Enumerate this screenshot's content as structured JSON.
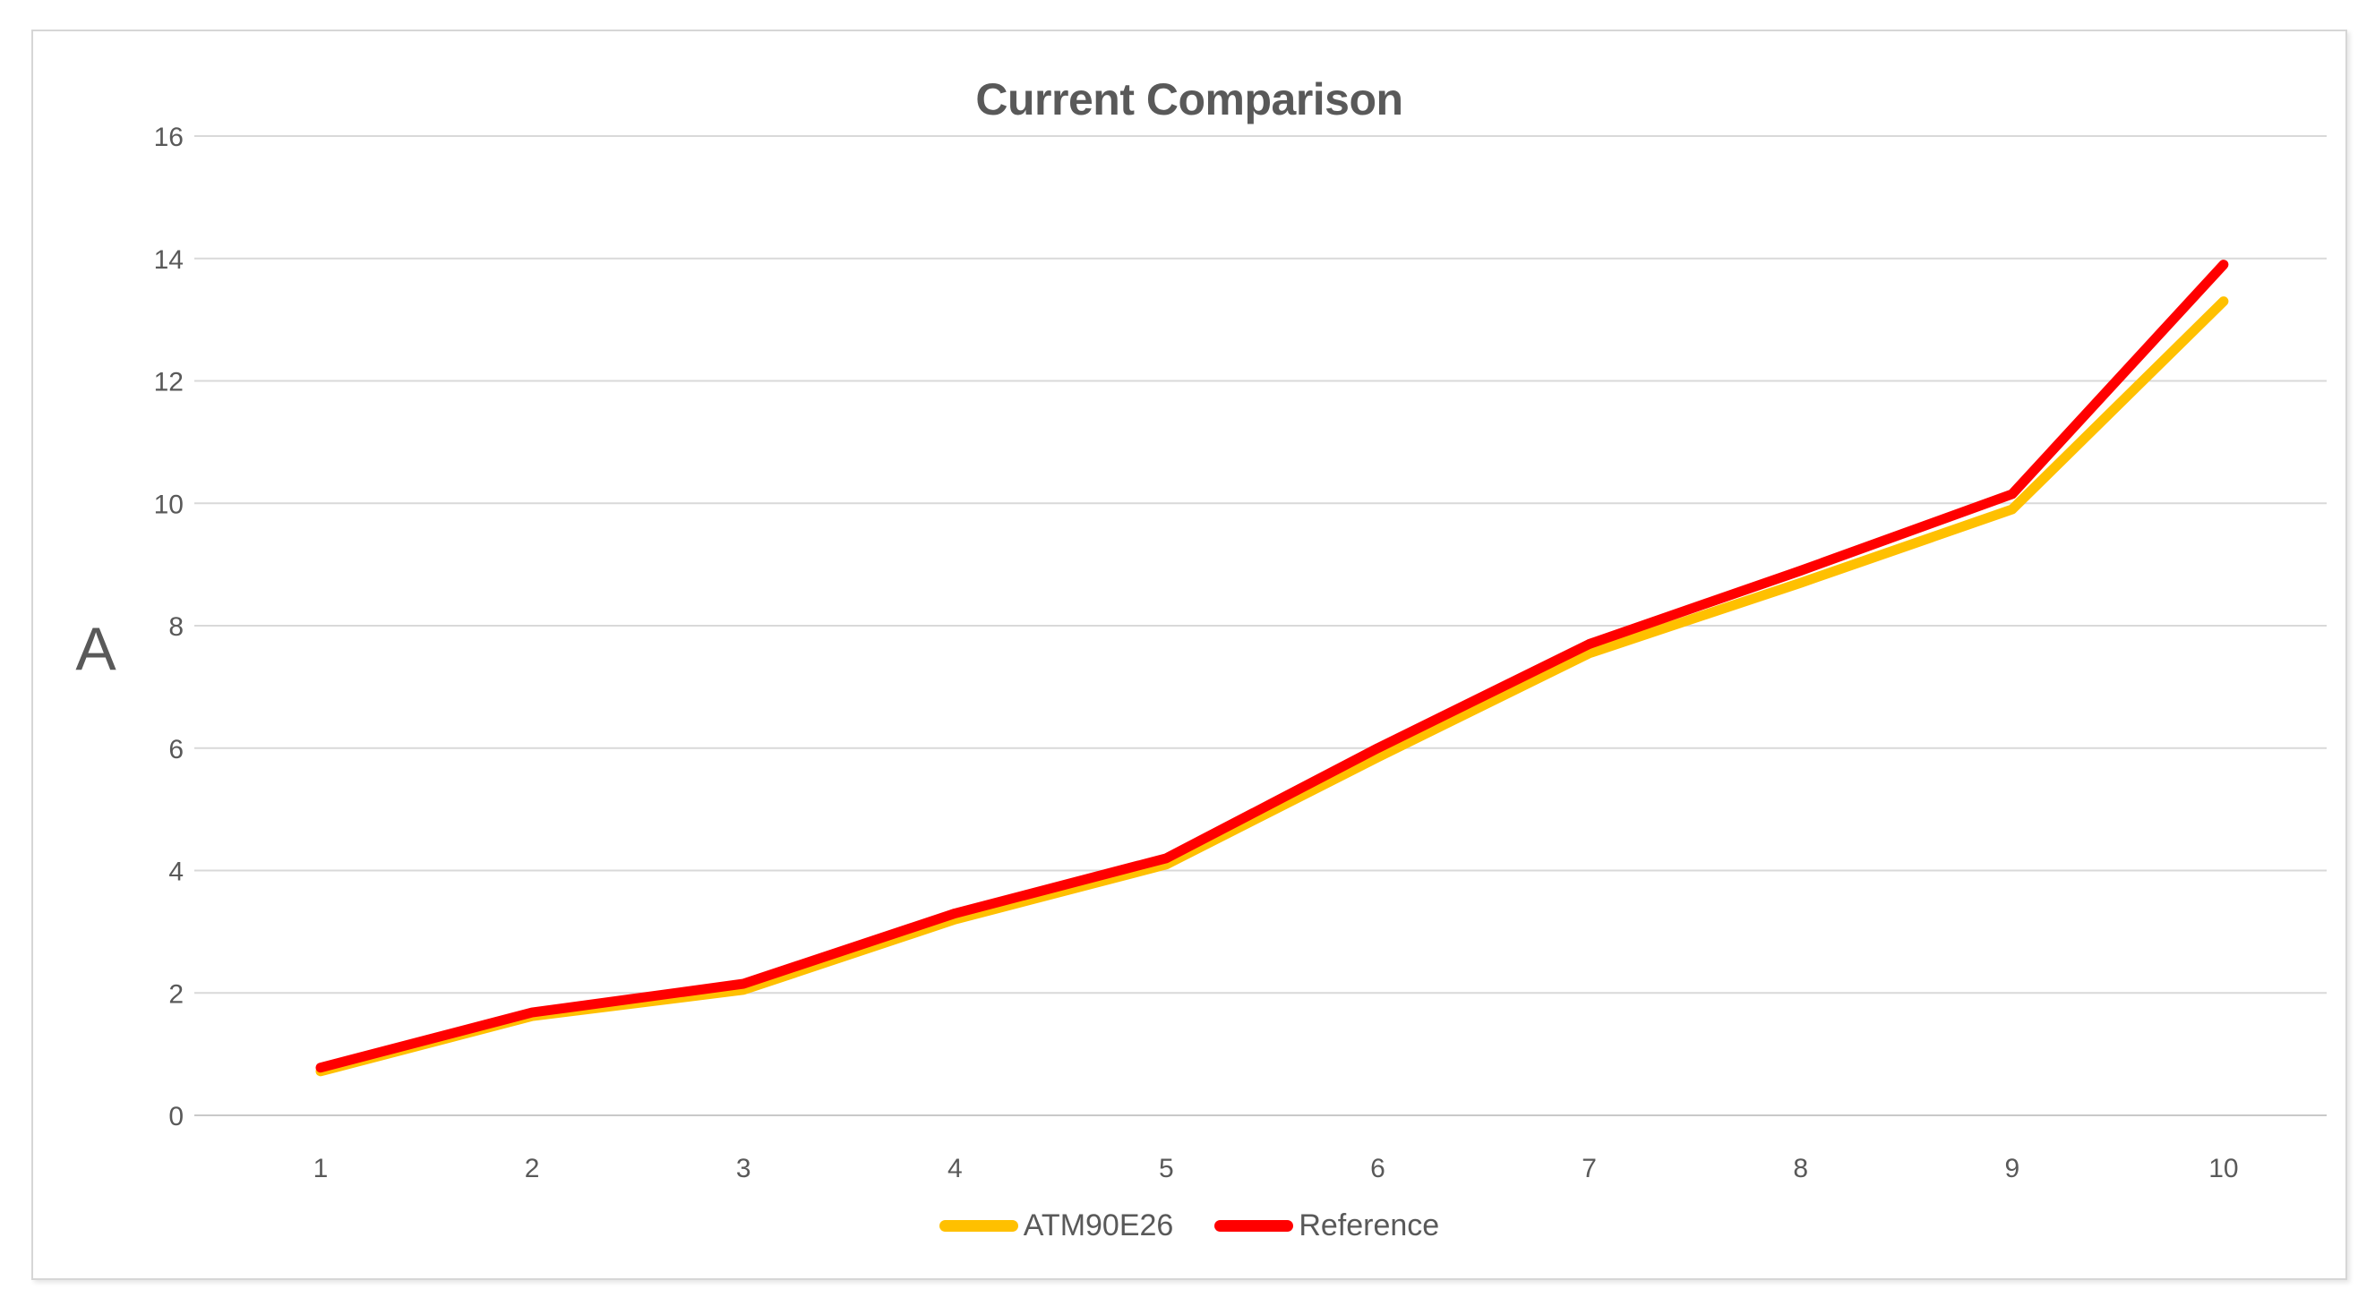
{
  "chart": {
    "title": "Current Comparison",
    "y_axis_unit": "A",
    "colors": {
      "series_atm90e26": "#FFC000",
      "series_reference": "#FF0000",
      "gridline": "#D9D9D9",
      "axis_line": "#C9C9C9",
      "text": "#595959",
      "frame_border": "#D6D6D6",
      "background": "#FFFFFF"
    }
  },
  "chart_data": {
    "type": "line",
    "title": "Current Comparison",
    "xlabel": "",
    "ylabel": "A",
    "categories": [
      1,
      2,
      3,
      4,
      5,
      6,
      7,
      8,
      9,
      10
    ],
    "series": [
      {
        "name": "ATM90E26",
        "color": "#FFC000",
        "values": [
          0.72,
          1.62,
          2.05,
          3.2,
          4.1,
          5.85,
          7.55,
          8.7,
          9.9,
          13.3
        ]
      },
      {
        "name": "Reference",
        "color": "#FF0000",
        "values": [
          0.78,
          1.68,
          2.15,
          3.3,
          4.2,
          6.0,
          7.7,
          8.9,
          10.15,
          13.9
        ]
      }
    ],
    "ylim": [
      0,
      16
    ],
    "y_ticks": [
      0,
      2,
      4,
      6,
      8,
      10,
      12,
      14,
      16
    ],
    "x_ticks": [
      "1",
      "2",
      "3",
      "4",
      "5",
      "6",
      "7",
      "8",
      "9",
      "10"
    ],
    "grid": "horizontal",
    "legend_position": "bottom"
  }
}
